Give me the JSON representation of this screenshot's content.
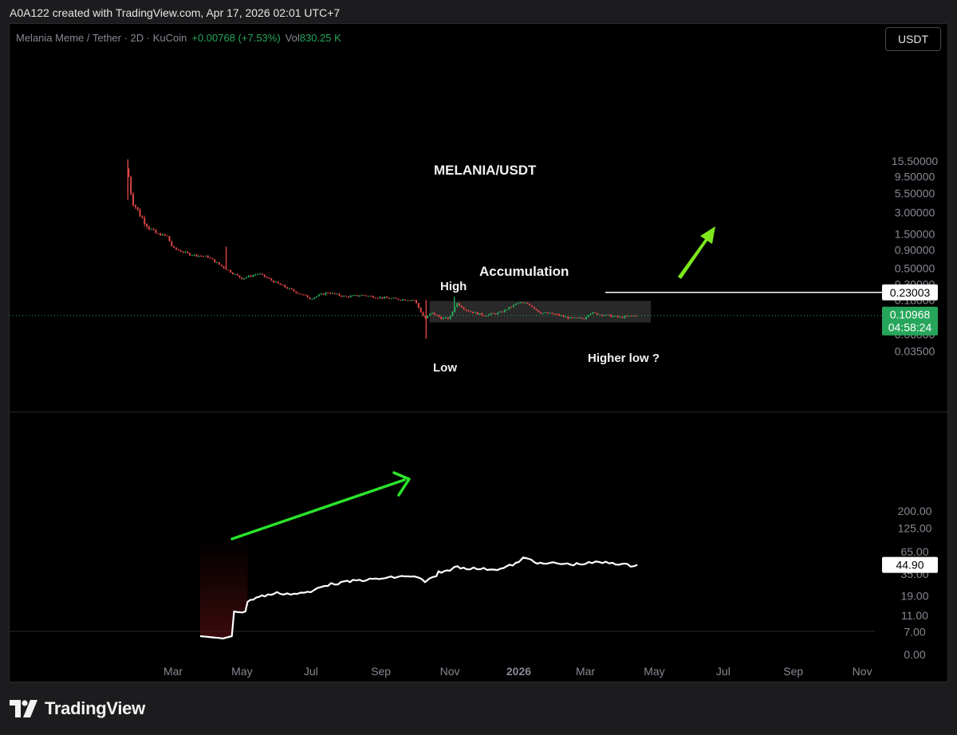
{
  "credit": "A0A122 created with TradingView.com, Apr 17, 2026 02:01 UTC+7",
  "legend": {
    "symbol": "Melania Meme / Tether · 2D · KuCoin",
    "change": "+0.00768 (+7.53%)",
    "vol_label": "Vol",
    "vol_value": "830.25 K"
  },
  "currency_button": "USDT",
  "brand": "TradingView",
  "colors": {
    "up": "#26a65b",
    "down": "#e04545",
    "annot_arrow": "#7ee81c",
    "indicator_line": "#ffffff",
    "price_badge": "#26a65b"
  },
  "chart_data": {
    "type": "candlestick",
    "price_scale": "log",
    "price_axis_ticks": [
      "15.50000",
      "9.50000",
      "5.50000",
      "3.00000",
      "1.50000",
      "0.90000",
      "0.50000",
      "0.30000",
      "0.18000",
      "0.10000",
      "0.06000",
      "0.03500"
    ],
    "price_axis_tick_values": [
      15.5,
      9.5,
      5.5,
      3.0,
      1.5,
      0.9,
      0.5,
      0.3,
      0.18,
      0.1,
      0.06,
      0.035
    ],
    "indicator_axis_ticks": [
      "200.00",
      "125.00",
      "65.00",
      "35.00",
      "19.00",
      "11.00",
      "7.00",
      "0.00"
    ],
    "indicator_axis_tick_values": [
      200,
      125,
      65,
      35,
      19,
      11,
      7
    ],
    "x_ticks": [
      "Mar",
      "May",
      "Jul",
      "Sep",
      "Nov",
      "2026",
      "Mar",
      "May",
      "Jul",
      "Sep",
      "Nov"
    ],
    "current_price": "0.10968",
    "countdown": "04:58:24",
    "level_label": "0.23003",
    "level_value": 0.23003,
    "indicator_value": "44.90",
    "indicator_last": 44.9,
    "accumulation_range": {
      "low": 0.0875,
      "high": 0.175
    },
    "price_path": [
      {
        "t": "2025-01-20",
        "p": 12.0
      },
      {
        "t": "2025-01-24",
        "p": 4.4
      },
      {
        "t": "2025-02-01",
        "p": 2.6
      },
      {
        "t": "2025-02-12",
        "p": 1.55
      },
      {
        "t": "2025-02-24",
        "p": 1.4
      },
      {
        "t": "2025-03-01",
        "p": 0.95
      },
      {
        "t": "2025-03-16",
        "p": 0.78
      },
      {
        "t": "2025-04-01",
        "p": 0.72
      },
      {
        "t": "2025-04-16",
        "p": 0.5
      },
      {
        "t": "2025-05-01",
        "p": 0.36
      },
      {
        "t": "2025-05-16",
        "p": 0.42
      },
      {
        "t": "2025-06-01",
        "p": 0.31
      },
      {
        "t": "2025-06-16",
        "p": 0.24
      },
      {
        "t": "2025-07-01",
        "p": 0.19
      },
      {
        "t": "2025-07-16",
        "p": 0.23
      },
      {
        "t": "2025-08-01",
        "p": 0.2
      },
      {
        "t": "2025-08-16",
        "p": 0.21
      },
      {
        "t": "2025-09-01",
        "p": 0.195
      },
      {
        "t": "2025-09-16",
        "p": 0.185
      },
      {
        "t": "2025-10-01",
        "p": 0.18
      },
      {
        "t": "2025-10-10",
        "p": 0.098
      },
      {
        "t": "2025-10-16",
        "p": 0.12
      },
      {
        "t": "2025-10-25",
        "p": 0.1
      },
      {
        "t": "2025-11-01",
        "p": 0.1
      },
      {
        "t": "2025-11-07",
        "p": 0.165
      },
      {
        "t": "2025-11-16",
        "p": 0.13
      },
      {
        "t": "2025-12-01",
        "p": 0.11
      },
      {
        "t": "2025-12-16",
        "p": 0.12
      },
      {
        "t": "2026-01-01",
        "p": 0.165
      },
      {
        "t": "2026-01-10",
        "p": 0.16
      },
      {
        "t": "2026-01-20",
        "p": 0.12
      },
      {
        "t": "2026-02-01",
        "p": 0.115
      },
      {
        "t": "2026-02-16",
        "p": 0.1
      },
      {
        "t": "2026-02-28",
        "p": 0.1
      },
      {
        "t": "2026-03-05",
        "p": 0.12
      },
      {
        "t": "2026-03-20",
        "p": 0.11
      },
      {
        "t": "2026-04-01",
        "p": 0.103
      },
      {
        "t": "2026-04-16",
        "p": 0.1097
      }
    ],
    "indicator_path": [
      {
        "t": "2025-03-25",
        "v": 6.2
      },
      {
        "t": "2025-04-10",
        "v": 5.9
      },
      {
        "t": "2025-04-14",
        "v": 5.8
      },
      {
        "t": "2025-04-22",
        "v": 6.2
      },
      {
        "t": "2025-04-24",
        "v": 12.5
      },
      {
        "t": "2025-05-04",
        "v": 12.0
      },
      {
        "t": "2025-05-06",
        "v": 16.5
      },
      {
        "t": "2025-05-16",
        "v": 18.5
      },
      {
        "t": "2025-06-01",
        "v": 20.5
      },
      {
        "t": "2025-06-16",
        "v": 20.0
      },
      {
        "t": "2025-07-01",
        "v": 21.0
      },
      {
        "t": "2025-07-10",
        "v": 25.0
      },
      {
        "t": "2025-07-25",
        "v": 27.0
      },
      {
        "t": "2025-08-10",
        "v": 29.0
      },
      {
        "t": "2025-08-25",
        "v": 30.0
      },
      {
        "t": "2025-09-10",
        "v": 31.5
      },
      {
        "t": "2025-09-25",
        "v": 33.0
      },
      {
        "t": "2025-10-05",
        "v": 31.0
      },
      {
        "t": "2025-10-10",
        "v": 28.0
      },
      {
        "t": "2025-10-14",
        "v": 30.0
      },
      {
        "t": "2025-10-20",
        "v": 32.0
      },
      {
        "t": "2025-10-22",
        "v": 37.0
      },
      {
        "t": "2025-11-01",
        "v": 38.0
      },
      {
        "t": "2025-11-05",
        "v": 43.0
      },
      {
        "t": "2025-11-16",
        "v": 41.0
      },
      {
        "t": "2025-12-01",
        "v": 40.0
      },
      {
        "t": "2025-12-16",
        "v": 40.0
      },
      {
        "t": "2026-01-01",
        "v": 48.0
      },
      {
        "t": "2026-01-05",
        "v": 54.0
      },
      {
        "t": "2026-01-12",
        "v": 52.0
      },
      {
        "t": "2026-01-20",
        "v": 46.0
      },
      {
        "t": "2026-02-01",
        "v": 47.0
      },
      {
        "t": "2026-02-16",
        "v": 45.5
      },
      {
        "t": "2026-03-01",
        "v": 46.5
      },
      {
        "t": "2026-03-10",
        "v": 48.0
      },
      {
        "t": "2026-03-25",
        "v": 47.5
      },
      {
        "t": "2026-04-10",
        "v": 44.0
      },
      {
        "t": "2026-04-16",
        "v": 44.9
      }
    ],
    "annotations": {
      "title": "MELANIA/USDT",
      "accumulation": "Accumulation",
      "high": "High",
      "low": "Low",
      "higher_low": "Higher low ?"
    }
  }
}
